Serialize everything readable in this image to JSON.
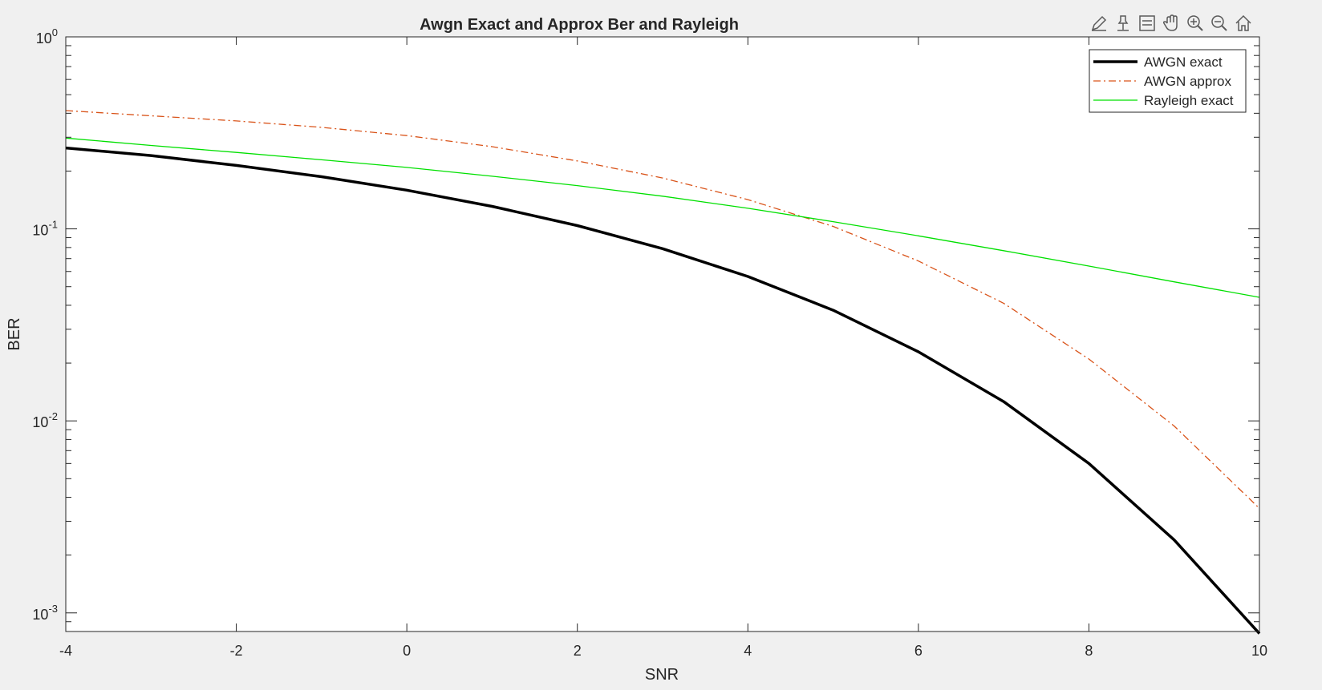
{
  "window": {
    "background": "#f0f0f0"
  },
  "toolbar": {
    "items": [
      {
        "name": "brush-data-icon",
        "label": "Brush Data"
      },
      {
        "name": "data-tips-icon",
        "label": "Data Tips"
      },
      {
        "name": "legend-icon",
        "label": "Insert Legend"
      },
      {
        "name": "pan-icon",
        "label": "Pan"
      },
      {
        "name": "zoom-in-icon",
        "label": "Zoom In"
      },
      {
        "name": "zoom-out-icon",
        "label": "Zoom Out"
      },
      {
        "name": "home-icon",
        "label": "Restore View"
      }
    ]
  },
  "chart_data": {
    "type": "line",
    "title": "Awgn Exact and Approx Ber and Rayleigh",
    "xlabel": "SNR",
    "ylabel": "BER",
    "xlim": [
      -4,
      10
    ],
    "ylim": [
      0.0008,
      1
    ],
    "yscale": "log",
    "grid": false,
    "legend_position": "top-right",
    "xticks": [
      -4,
      -2,
      0,
      2,
      4,
      6,
      8,
      10
    ],
    "xtick_labels": [
      "-4",
      "-2",
      "0",
      "2",
      "4",
      "6",
      "8",
      "10"
    ],
    "yticks": [
      0.001,
      0.01,
      0.1,
      1
    ],
    "ytick_labels": [
      {
        "base": "10",
        "exp": "-3"
      },
      {
        "base": "10",
        "exp": "-2"
      },
      {
        "base": "10",
        "exp": "-1"
      },
      {
        "base": "10",
        "exp": "0"
      }
    ],
    "x": [
      -4,
      -3,
      -2,
      -1,
      0,
      1,
      2,
      3,
      4,
      5,
      6,
      7,
      8,
      9,
      10
    ],
    "series": [
      {
        "name": "AWGN exact",
        "color": "#000000",
        "style": "solid",
        "width": "thick",
        "values": [
          0.264,
          0.241,
          0.214,
          0.187,
          0.159,
          0.131,
          0.104,
          0.0789,
          0.0565,
          0.0377,
          0.0229,
          0.0126,
          0.006,
          0.0024,
          0.00078
        ]
      },
      {
        "name": "AWGN approx",
        "color": "#d95319",
        "style": "dashdot",
        "width": "thin",
        "values": [
          0.413,
          0.388,
          0.365,
          0.338,
          0.306,
          0.268,
          0.226,
          0.184,
          0.142,
          0.103,
          0.068,
          0.041,
          0.021,
          0.0094,
          0.0035
        ]
      },
      {
        "name": "Rayleigh exact",
        "color": "#00e000",
        "style": "solid",
        "width": "thin",
        "values": [
          0.297,
          0.272,
          0.25,
          0.229,
          0.209,
          0.188,
          0.168,
          0.148,
          0.128,
          0.109,
          0.092,
          0.077,
          0.064,
          0.053,
          0.044
        ]
      }
    ]
  }
}
